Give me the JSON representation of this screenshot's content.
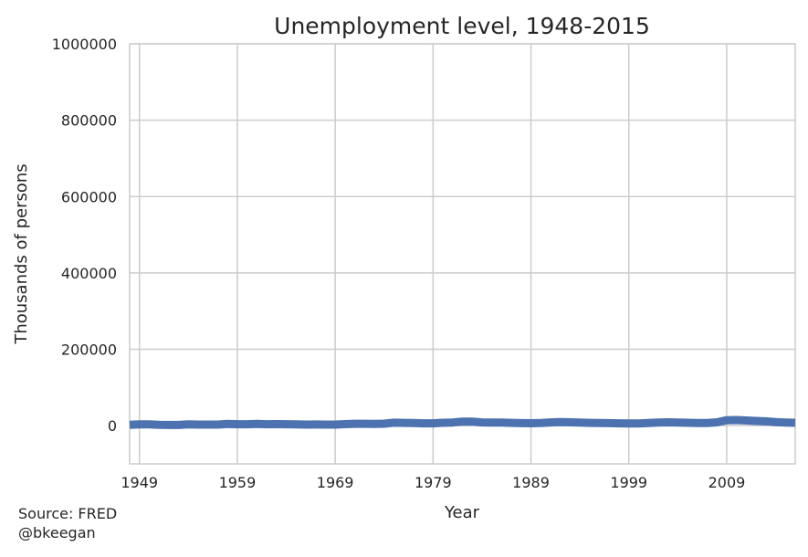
{
  "chart_data": {
    "type": "line",
    "title": "Unemployment level, 1948-2015",
    "xlabel": "Year",
    "ylabel": "Thousands of persons",
    "xlim": [
      1948,
      2016
    ],
    "ylim": [
      -100000,
      1000000
    ],
    "xticks": [
      1949,
      1959,
      1969,
      1979,
      1989,
      1999,
      2009
    ],
    "yticks": [
      0,
      200000,
      400000,
      600000,
      800000,
      1000000
    ],
    "grid": true,
    "series": [
      {
        "color": "#4c72b0",
        "band_color": "#c8cfe0",
        "x": [
          1948,
          1949,
          1950,
          1951,
          1952,
          1953,
          1954,
          1955,
          1956,
          1957,
          1958,
          1959,
          1960,
          1961,
          1962,
          1963,
          1964,
          1965,
          1966,
          1967,
          1968,
          1969,
          1970,
          1971,
          1972,
          1973,
          1974,
          1975,
          1976,
          1977,
          1978,
          1979,
          1980,
          1981,
          1982,
          1983,
          1984,
          1985,
          1986,
          1987,
          1988,
          1989,
          1990,
          1991,
          1992,
          1993,
          1994,
          1995,
          1996,
          1997,
          1998,
          1999,
          2000,
          2001,
          2002,
          2003,
          2004,
          2005,
          2006,
          2007,
          2008,
          2009,
          2010,
          2011,
          2012,
          2013,
          2014,
          2015,
          2016
        ],
        "values": [
          2300,
          3600,
          3300,
          2100,
          1900,
          1800,
          3500,
          2900,
          2800,
          2900,
          4600,
          3700,
          3900,
          4700,
          3900,
          4100,
          3800,
          3400,
          2900,
          3000,
          2800,
          2800,
          4100,
          5000,
          4900,
          4400,
          5200,
          7900,
          7400,
          6900,
          6200,
          6100,
          7600,
          8300,
          10700,
          10700,
          8500,
          8300,
          8200,
          7400,
          6700,
          6500,
          7000,
          8600,
          9600,
          8900,
          8000,
          7400,
          7200,
          6700,
          6200,
          5900,
          5700,
          6800,
          8400,
          8800,
          8100,
          7600,
          7000,
          7100,
          8900,
          14300,
          14800,
          13700,
          12500,
          11500,
          9600,
          8300,
          7600
        ]
      }
    ]
  },
  "source": {
    "line1": "Source: FRED",
    "line2": "@bkeegan"
  }
}
